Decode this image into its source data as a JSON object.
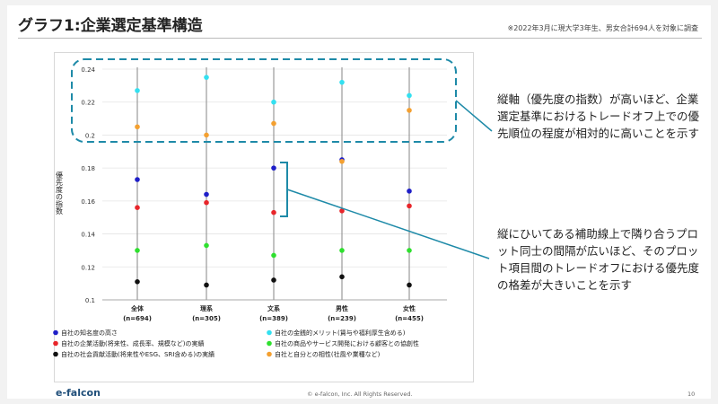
{
  "title": "グラフ1:企業選定基準構造",
  "note": "※2022年3月に現大学3年生、男女合計694人を対象に調査",
  "callout_top": "縦軸（優先度の指数）が高いほど、企業選定基準におけるトレードオフ上での優先順位の程度が相対的に高いことを示す",
  "callout_bottom": "縦にひいてある補助線上で隣り合うプロット同士の間隔が広いほど、そのプロット項目間のトレードオフにおける優先度の格差が大きいことを示す",
  "logo": "e-falcon",
  "footer": "© e-falcon, Inc. All Rights Reserved.",
  "page_number": "10",
  "chart_data": {
    "type": "scatter",
    "ylabel": "優先度の指数",
    "ylim": [
      0.1,
      0.24
    ],
    "yticks": [
      0.1,
      0.12,
      0.14,
      0.16,
      0.18,
      0.2,
      0.22,
      0.24
    ],
    "categories": [
      {
        "name": "全体",
        "n": "(n=694)"
      },
      {
        "name": "理系",
        "n": "(n=305)"
      },
      {
        "name": "文系",
        "n": "(n=389)"
      },
      {
        "name": "男性",
        "n": "(n=239)"
      },
      {
        "name": "女性",
        "n": "(n=455)"
      }
    ],
    "series": [
      {
        "name": "自社の知名度の高さ",
        "color": "#1f1fc8",
        "values": [
          0.173,
          0.164,
          0.18,
          0.185,
          0.166
        ]
      },
      {
        "name": "自社の金銭的メリット(賃与や福利厚生含める)",
        "color": "#33e0f0",
        "values": [
          0.227,
          0.235,
          0.22,
          0.232,
          0.224
        ]
      },
      {
        "name": "自社の企業活動(将来性、成長率、規模など)の実績",
        "color": "#e8252a",
        "values": [
          0.156,
          0.159,
          0.153,
          0.154,
          0.157
        ]
      },
      {
        "name": "自社の商品やサービス開発における顧客との協創性",
        "color": "#2ee02e",
        "values": [
          0.13,
          0.133,
          0.127,
          0.13,
          0.13
        ]
      },
      {
        "name": "自社の社会貢献活動(将来性やESG、SRI含める)の実績",
        "color": "#111111",
        "values": [
          0.111,
          0.109,
          0.112,
          0.114,
          0.109
        ]
      },
      {
        "name": "自社と自分との相性(社風や業種など)",
        "color": "#f4a030",
        "values": [
          0.205,
          0.2,
          0.207,
          0.184,
          0.215
        ]
      }
    ]
  }
}
